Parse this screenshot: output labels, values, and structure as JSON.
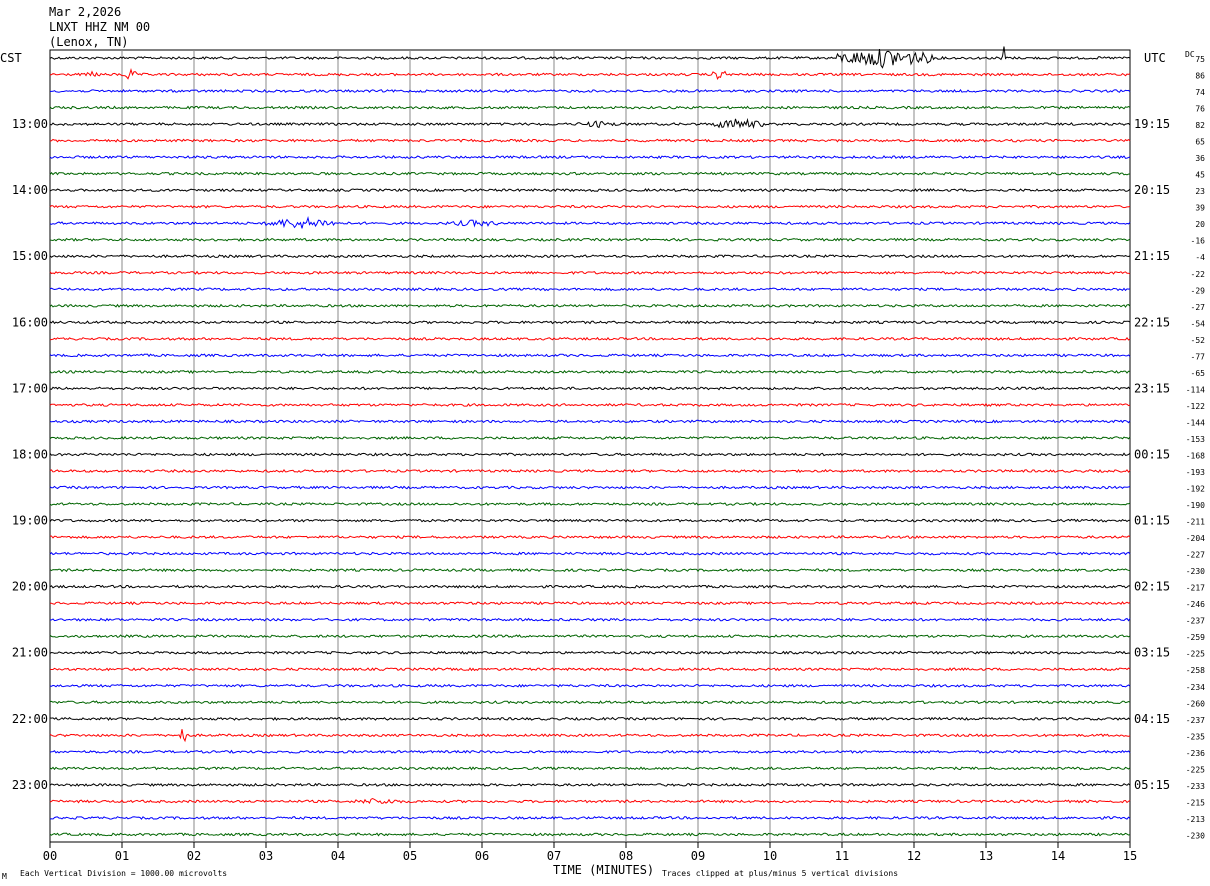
{
  "header": {
    "date": "Mar 2,2026",
    "station": "LNXT HHZ NM 00",
    "location": "(Lenox, TN)"
  },
  "labels": {
    "left_tz": "CST",
    "right_tz": "UTC",
    "dc": "DC",
    "footer_scale": "Each Vertical Division = 1000.00 microvolts",
    "footer_clip": "Traces clipped at plus/minus 5 vertical divisions",
    "footer_mark": "M"
  },
  "chart_data": {
    "type": "line",
    "title": "",
    "xlabel": "TIME (MINUTES)",
    "ylabel": "",
    "xlim": [
      0,
      15
    ],
    "x_ticks": [
      "00",
      "01",
      "02",
      "03",
      "04",
      "05",
      "06",
      "07",
      "08",
      "09",
      "10",
      "11",
      "12",
      "13",
      "14",
      "15"
    ],
    "trace_colors": [
      "#000000",
      "#ff0000",
      "#0000ff",
      "#006400"
    ],
    "grid": true,
    "rows_per_hour": 4,
    "left_time_labels": [
      "13:00",
      "14:00",
      "15:00",
      "16:00",
      "17:00",
      "18:00",
      "19:00",
      "20:00",
      "21:00",
      "22:00",
      "23:00"
    ],
    "right_time_labels": [
      "19:15",
      "20:15",
      "21:15",
      "22:15",
      "23:15",
      "00:15",
      "01:15",
      "02:15",
      "03:15",
      "04:15",
      "05:15"
    ],
    "dc_offsets": [
      "75",
      "86",
      "74",
      "76",
      "82",
      "65",
      "36",
      "45",
      "23",
      "39",
      "20",
      "-16",
      "-4",
      "-22",
      "-29",
      "-27",
      "-54",
      "-52",
      "-77",
      "-65",
      "-114",
      "-122",
      "-144",
      "-153",
      "-168",
      "-193",
      "-192",
      "-190",
      "-211",
      "-204",
      "-227",
      "-230",
      "-217",
      "-246",
      "-237",
      "-259",
      "-225",
      "-258",
      "-234",
      "-260",
      "-237",
      "-235",
      "-236",
      "-225",
      "-233",
      "-215",
      "-213",
      "-230"
    ],
    "events": [
      {
        "trace": 0,
        "start_min": 10.9,
        "end_min": 12.3,
        "amplitude": "large"
      },
      {
        "trace": 0,
        "start_min": 13.2,
        "end_min": 13.3,
        "amplitude": "spike"
      },
      {
        "trace": 1,
        "start_min": 0.5,
        "end_min": 0.7,
        "amplitude": "small"
      },
      {
        "trace": 1,
        "start_min": 1.0,
        "end_min": 1.2,
        "amplitude": "medium"
      },
      {
        "trace": 1,
        "start_min": 9.2,
        "end_min": 9.4,
        "amplitude": "medium"
      },
      {
        "trace": 4,
        "start_min": 7.3,
        "end_min": 7.9,
        "amplitude": "small"
      },
      {
        "trace": 4,
        "start_min": 9.2,
        "end_min": 9.9,
        "amplitude": "medium"
      },
      {
        "trace": 10,
        "start_min": 3.0,
        "end_min": 4.0,
        "amplitude": "medium"
      },
      {
        "trace": 10,
        "start_min": 5.5,
        "end_min": 6.3,
        "amplitude": "small"
      },
      {
        "trace": 41,
        "start_min": 1.8,
        "end_min": 1.9,
        "amplitude": "spike"
      },
      {
        "trace": 45,
        "start_min": 4.2,
        "end_min": 4.9,
        "amplitude": "small"
      }
    ]
  }
}
